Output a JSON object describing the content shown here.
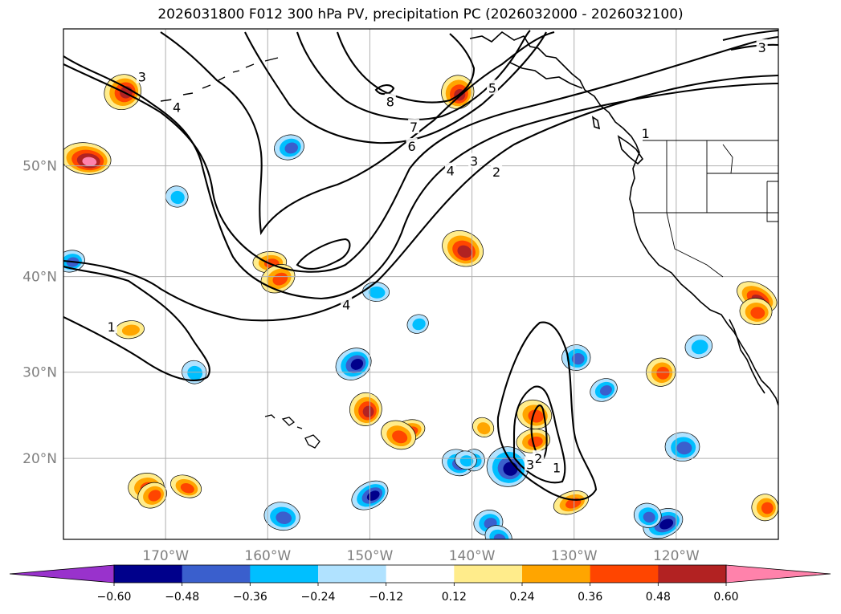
{
  "title": "2026031800 F012 300 hPa PV, precipitation PC (2026032000 - 2026032100)",
  "map": {
    "extent_lon": [
      -180,
      -110
    ],
    "extent_lat": [
      10,
      60
    ],
    "gridlines": true,
    "lat_labels": [
      {
        "lat": 50,
        "text": "50°N"
      },
      {
        "lat": 40,
        "text": "40°N"
      },
      {
        "lat": 30,
        "text": "30°N"
      },
      {
        "lat": 20,
        "text": "20°N"
      }
    ],
    "lon_labels": [
      {
        "lon": -170,
        "text": "170°W"
      },
      {
        "lon": -160,
        "text": "160°W"
      },
      {
        "lon": -150,
        "text": "150°W"
      },
      {
        "lon": -140,
        "text": "140°W"
      },
      {
        "lon": -130,
        "text": "130°W"
      },
      {
        "lon": -120,
        "text": "120°W"
      }
    ],
    "pv_contour_labels": [
      {
        "text": "3",
        "lon": -172.3,
        "lat": 56.8
      },
      {
        "text": "4",
        "lon": -168.9,
        "lat": 54.6
      },
      {
        "text": "8",
        "lon": -148.0,
        "lat": 55.0
      },
      {
        "text": "7",
        "lon": -145.7,
        "lat": 53.1
      },
      {
        "text": "6",
        "lon": -145.9,
        "lat": 51.6
      },
      {
        "text": "5",
        "lon": -138.0,
        "lat": 56.0
      },
      {
        "text": "4",
        "lon": -142.1,
        "lat": 49.6
      },
      {
        "text": "3",
        "lon": -139.8,
        "lat": 50.4
      },
      {
        "text": "2",
        "lon": -137.6,
        "lat": 49.5
      },
      {
        "text": "1",
        "lon": -123.0,
        "lat": 52.6
      },
      {
        "text": "3",
        "lon": -111.6,
        "lat": 58.8
      },
      {
        "text": "4",
        "lon": -152.3,
        "lat": 37.2
      },
      {
        "text": "1",
        "lon": -175.3,
        "lat": 34.9
      },
      {
        "text": "2",
        "lon": -133.5,
        "lat": 20.0
      },
      {
        "text": "3",
        "lon": -134.3,
        "lat": 19.3
      },
      {
        "text": "1",
        "lon": -131.7,
        "lat": 18.9
      }
    ],
    "precip_blobs": [
      {
        "lon": -174.2,
        "lat": 55.7,
        "value": 0.48
      },
      {
        "lon": -177.8,
        "lat": 50.6,
        "value": 0.6
      },
      {
        "lon": -157.9,
        "lat": 51.5,
        "value": -0.36
      },
      {
        "lon": -141.4,
        "lat": 55.7,
        "value": 0.48
      },
      {
        "lon": -159.8,
        "lat": 41.4,
        "value": 0.36
      },
      {
        "lon": -159.0,
        "lat": 39.8,
        "value": 0.36
      },
      {
        "lon": -168.9,
        "lat": 47.4,
        "value": -0.24
      },
      {
        "lon": -179.3,
        "lat": 41.5,
        "value": -0.36
      },
      {
        "lon": -140.9,
        "lat": 42.7,
        "value": 0.48
      },
      {
        "lon": -149.4,
        "lat": 38.5,
        "value": -0.24
      },
      {
        "lon": -145.3,
        "lat": 35.2,
        "value": -0.24
      },
      {
        "lon": -167.2,
        "lat": 30.0,
        "value": -0.24
      },
      {
        "lon": -173.5,
        "lat": 34.6,
        "value": 0.24
      },
      {
        "lon": -151.6,
        "lat": 30.9,
        "value": -0.48
      },
      {
        "lon": -150.4,
        "lat": 25.8,
        "value": 0.48
      },
      {
        "lon": -146.2,
        "lat": 23.3,
        "value": 0.36
      },
      {
        "lon": -147.2,
        "lat": 22.8,
        "value": 0.36
      },
      {
        "lon": -129.8,
        "lat": 31.6,
        "value": -0.36
      },
      {
        "lon": -127.1,
        "lat": 28.0,
        "value": -0.36
      },
      {
        "lon": -133.9,
        "lat": 25.2,
        "value": 0.36
      },
      {
        "lon": -134.0,
        "lat": 22.1,
        "value": 0.36
      },
      {
        "lon": -138.9,
        "lat": 23.7,
        "value": 0.24
      },
      {
        "lon": -136.5,
        "lat": 19.0,
        "value": -0.6
      },
      {
        "lon": -130.3,
        "lat": 14.6,
        "value": 0.36
      },
      {
        "lon": -141.4,
        "lat": 19.5,
        "value": -0.36
      },
      {
        "lon": -139.8,
        "lat": 19.8,
        "value": -0.24
      },
      {
        "lon": -150.0,
        "lat": 15.5,
        "value": -0.48
      },
      {
        "lon": -158.6,
        "lat": 12.9,
        "value": -0.36
      },
      {
        "lon": -138.4,
        "lat": 12.1,
        "value": -0.36
      },
      {
        "lon": -137.4,
        "lat": 10.3,
        "value": -0.36
      },
      {
        "lon": -119.4,
        "lat": 21.4,
        "value": -0.36
      },
      {
        "lon": -121.3,
        "lat": 12.0,
        "value": -0.48
      },
      {
        "lon": -122.8,
        "lat": 13.0,
        "value": -0.36
      },
      {
        "lon": -121.5,
        "lat": 30.0,
        "value": 0.36
      },
      {
        "lon": -112.1,
        "lat": 38.0,
        "value": 0.48
      },
      {
        "lon": -112.2,
        "lat": 36.5,
        "value": 0.36
      },
      {
        "lon": -111.3,
        "lat": 14.0,
        "value": 0.36
      },
      {
        "lon": -168.0,
        "lat": 16.6,
        "value": 0.36
      },
      {
        "lon": -171.9,
        "lat": 16.5,
        "value": 0.36
      },
      {
        "lon": -171.3,
        "lat": 15.5,
        "value": 0.36
      },
      {
        "lon": -140.6,
        "lat": 19.8,
        "value": -0.24
      },
      {
        "lon": -117.8,
        "lat": 32.8,
        "value": -0.24
      }
    ]
  },
  "colorbar": {
    "levels": [
      "−0.60",
      "−0.48",
      "−0.36",
      "−0.24",
      "−0.12",
      "0.12",
      "0.24",
      "0.36",
      "0.48",
      "0.60"
    ],
    "colors": [
      "#9932cc",
      "#00008b",
      "#3a5fcd",
      "#00bfff",
      "#b0e2ff",
      "#ffffff",
      "#ffec8b",
      "#ffa500",
      "#ff4500",
      "#b22222",
      "#ff82ab"
    ]
  },
  "colors": {
    "neg_060": "#00008b",
    "neg_048": "#3a5fcd",
    "neg_036": "#00bfff",
    "neg_024": "#b0e2ff",
    "pos_024": "#ffec8b",
    "pos_036": "#ffa500",
    "pos_048": "#ff4500",
    "pos_060": "#b22222",
    "pos_072": "#ff82ab"
  }
}
